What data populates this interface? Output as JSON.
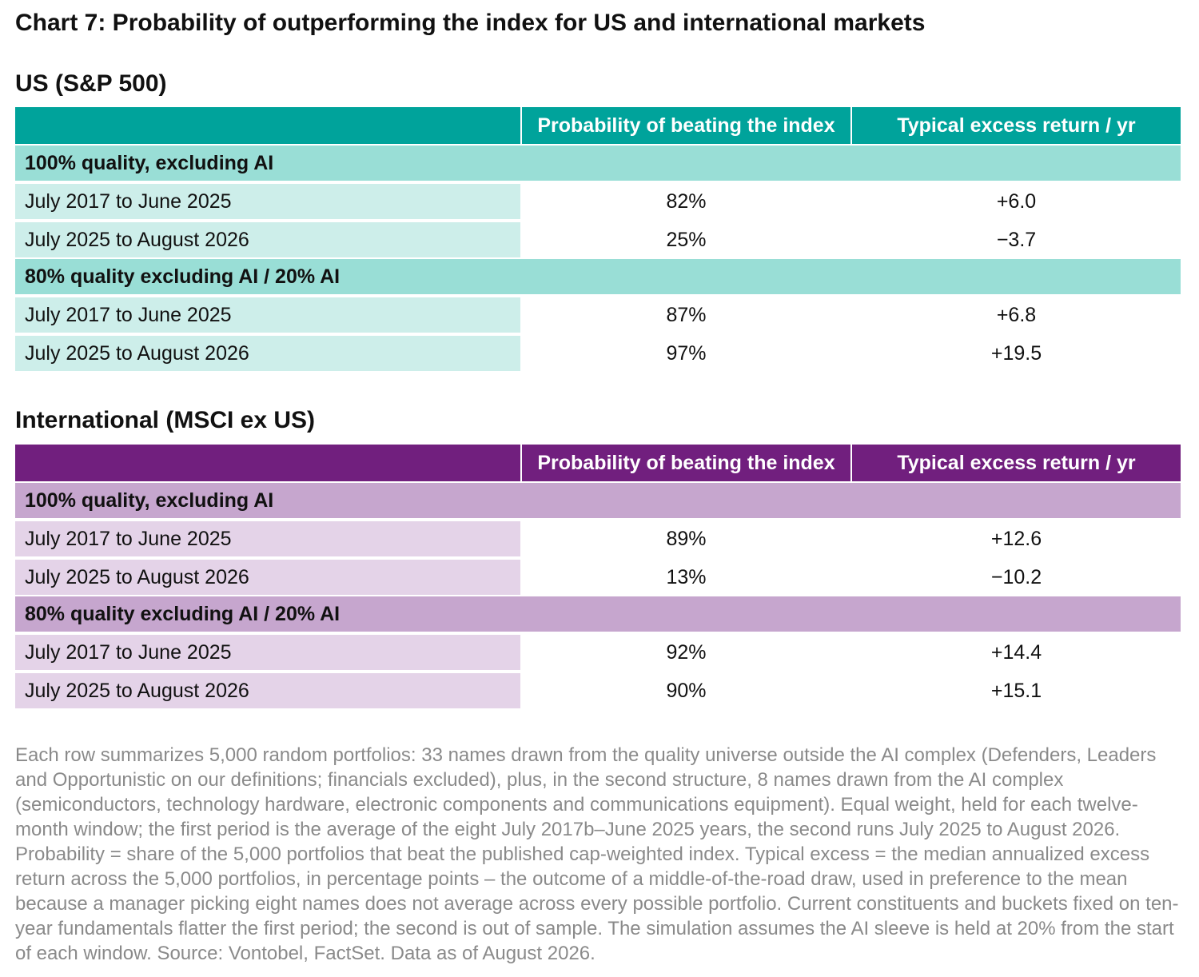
{
  "title": "Chart 7: Probability of outperforming the index for US and international markets",
  "tables": [
    {
      "heading": "US (S&P 500)",
      "columns": [
        "",
        "Probability of beating the index",
        "Typical excess return / yr"
      ],
      "groups": [
        {
          "label": "100% quality, excluding AI",
          "rows": [
            {
              "period": "July 2017 to June 2025",
              "probability": "82%",
              "excess": "+6.0"
            },
            {
              "period": "July 2025 to August 2026",
              "probability": "25%",
              "excess": "−3.7"
            }
          ]
        },
        {
          "label": "80% quality excluding AI / 20% AI",
          "rows": [
            {
              "period": "July 2017 to June 2025",
              "probability": "87%",
              "excess": "+6.8"
            },
            {
              "period": "July 2025 to August 2026",
              "probability": "97%",
              "excess": "+19.5"
            }
          ]
        }
      ]
    },
    {
      "heading": "International (MSCI ex US)",
      "columns": [
        "",
        "Probability of beating the index",
        "Typical excess return / yr"
      ],
      "groups": [
        {
          "label": "100% quality, excluding AI",
          "rows": [
            {
              "period": "July 2017 to June 2025",
              "probability": "89%",
              "excess": "+12.6"
            },
            {
              "period": "July 2025 to August 2026",
              "probability": "13%",
              "excess": "−10.2"
            }
          ]
        },
        {
          "label": "80% quality excluding AI / 20% AI",
          "rows": [
            {
              "period": "July 2017 to June 2025",
              "probability": "92%",
              "excess": "+14.4"
            },
            {
              "period": "July 2025 to August 2026",
              "probability": "90%",
              "excess": "+15.1"
            }
          ]
        }
      ]
    }
  ],
  "footnote": "Each row summarizes 5,000 random portfolios: 33 names drawn from the quality universe outside the AI complex (Defenders, Leaders and Opportunistic on our definitions; financials excluded), plus, in the second structure, 8 names drawn from the AI complex (semiconductors, technology hardware, electronic components and communications equipment). Equal weight, held for each twelve-month window; the first period is the average of the eight July 2017b–June 2025 years, the second runs July 2025 to August 2026. Probability = share of the 5,000 portfolios that beat the published cap-weighted index. Typical excess = the median annualized excess return across the 5,000 portfolios, in percentage points – the outcome of a middle-of-the-road draw, used in preference to the mean because a manager picking eight names does not average across every possible portfolio. Current constituents and buckets fixed on ten-year fundamentals flatter the first period; the second is out of sample. The simulation assumes the AI sleeve is held at 20% from the start of each window. Source: Vontobel, FactSet. Data as of August 2026.",
  "colors": {
    "us_header": "#00a39b",
    "us_group": "#99ded6",
    "us_label": "#cdeeea",
    "intl_header": "#711f7e",
    "intl_group": "#c6a6ce",
    "intl_label": "#e4d3e8"
  }
}
